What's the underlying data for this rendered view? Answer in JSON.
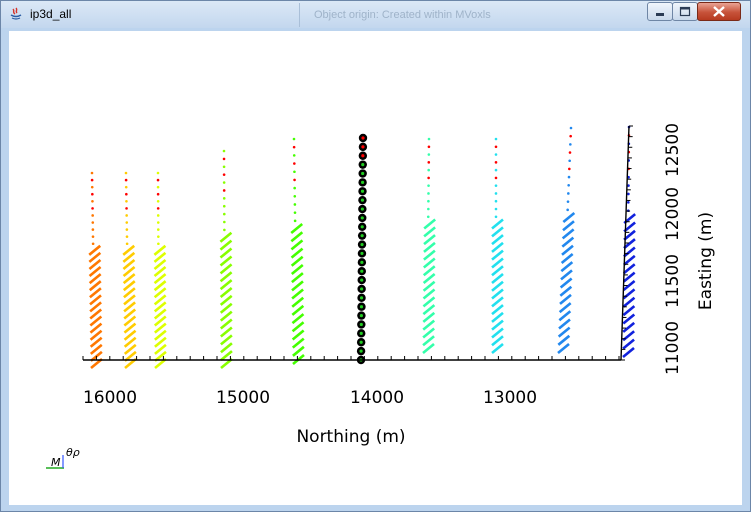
{
  "window": {
    "title": "ip3d_all",
    "background_title": "Object origin: Created within MVoxls",
    "buttons": {
      "minimize_icon": "minimize-icon",
      "maximize_icon": "maximize-icon",
      "close_icon": "close-icon"
    }
  },
  "plot": {
    "x_axis_label": "Northing (m)",
    "y_axis_label": "Easting (m)",
    "x_ticks": [
      "16000",
      "15000",
      "14000",
      "13000"
    ],
    "y_ticks": [
      "11000",
      "11500",
      "12000",
      "12500"
    ],
    "orientation_label": "θρ",
    "highlight_color": "#000000",
    "marker_colors": {
      "top": "#ff0000",
      "selected_center": "#22cc22"
    },
    "line_colors": [
      "#ff7700",
      "#ffcc00",
      "#ddff00",
      "#88ff00",
      "#44ff00",
      "#000000",
      "#33ffaa",
      "#22e0ee",
      "#2288ee",
      "#1122dd"
    ]
  }
}
